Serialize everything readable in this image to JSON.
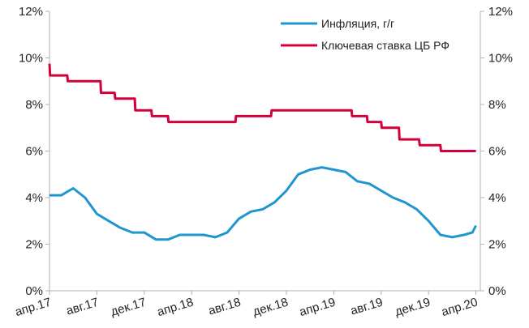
{
  "chart_data": {
    "type": "line",
    "title": "",
    "xlabel": "",
    "ylabel_left": "",
    "ylabel_right": "",
    "x_ticks": [
      "апр.17",
      "авг.17",
      "дек.17",
      "апр.18",
      "авг.18",
      "дек.18",
      "апр.19",
      "авг.19",
      "дек.19",
      "апр.20"
    ],
    "y_ticks_left": [
      "0%",
      "2%",
      "4%",
      "6%",
      "8%",
      "10%",
      "12%"
    ],
    "y_ticks_right": [
      "0%",
      "2%",
      "4%",
      "6%",
      "8%",
      "10%",
      "12%"
    ],
    "ylim": [
      0,
      12
    ],
    "xlim": [
      0,
      37
    ],
    "grid": false,
    "legend_position": "top-right",
    "series": [
      {
        "name": "Инфляция, г/г",
        "color": "#1f96cf",
        "points": [
          [
            0.0,
            4.1
          ],
          [
            1.0,
            4.1
          ],
          [
            2.0,
            4.4
          ],
          [
            3.0,
            4.0
          ],
          [
            4.0,
            3.3
          ],
          [
            5.0,
            3.0
          ],
          [
            6.0,
            2.7
          ],
          [
            7.0,
            2.5
          ],
          [
            8.0,
            2.5
          ],
          [
            9.0,
            2.2
          ],
          [
            10.0,
            2.2
          ],
          [
            11.0,
            2.4
          ],
          [
            12.0,
            2.4
          ],
          [
            13.0,
            2.4
          ],
          [
            14.0,
            2.3
          ],
          [
            15.0,
            2.5
          ],
          [
            16.0,
            3.1
          ],
          [
            17.0,
            3.4
          ],
          [
            18.0,
            3.5
          ],
          [
            19.0,
            3.8
          ],
          [
            20.0,
            4.3
          ],
          [
            21.0,
            5.0
          ],
          [
            22.0,
            5.2
          ],
          [
            23.0,
            5.3
          ],
          [
            24.0,
            5.2
          ],
          [
            25.0,
            5.1
          ],
          [
            26.0,
            4.7
          ],
          [
            27.0,
            4.6
          ],
          [
            28.0,
            4.3
          ],
          [
            29.0,
            4.0
          ],
          [
            30.0,
            3.8
          ],
          [
            31.0,
            3.5
          ],
          [
            32.0,
            3.0
          ],
          [
            33.0,
            2.4
          ],
          [
            34.0,
            2.3
          ],
          [
            35.0,
            2.4
          ],
          [
            35.7,
            2.5
          ],
          [
            36.0,
            2.8
          ]
        ]
      },
      {
        "name": "Ключевая ставка ЦБ РФ",
        "color": "#d3003a",
        "points": [
          [
            0.0,
            9.75
          ],
          [
            0.05,
            9.25
          ],
          [
            1.5,
            9.25
          ],
          [
            1.55,
            9.0
          ],
          [
            4.3,
            9.0
          ],
          [
            4.35,
            8.5
          ],
          [
            5.5,
            8.5
          ],
          [
            5.55,
            8.25
          ],
          [
            7.2,
            8.25
          ],
          [
            7.25,
            7.75
          ],
          [
            8.6,
            7.75
          ],
          [
            8.65,
            7.5
          ],
          [
            10.0,
            7.5
          ],
          [
            10.05,
            7.25
          ],
          [
            15.7,
            7.25
          ],
          [
            15.75,
            7.5
          ],
          [
            18.7,
            7.5
          ],
          [
            18.75,
            7.75
          ],
          [
            25.5,
            7.75
          ],
          [
            25.55,
            7.5
          ],
          [
            26.8,
            7.5
          ],
          [
            26.85,
            7.25
          ],
          [
            28.0,
            7.25
          ],
          [
            28.05,
            7.0
          ],
          [
            29.5,
            7.0
          ],
          [
            29.55,
            6.5
          ],
          [
            31.2,
            6.5
          ],
          [
            31.25,
            6.25
          ],
          [
            33.0,
            6.25
          ],
          [
            33.05,
            6.0
          ],
          [
            36.0,
            6.0
          ]
        ]
      }
    ]
  }
}
